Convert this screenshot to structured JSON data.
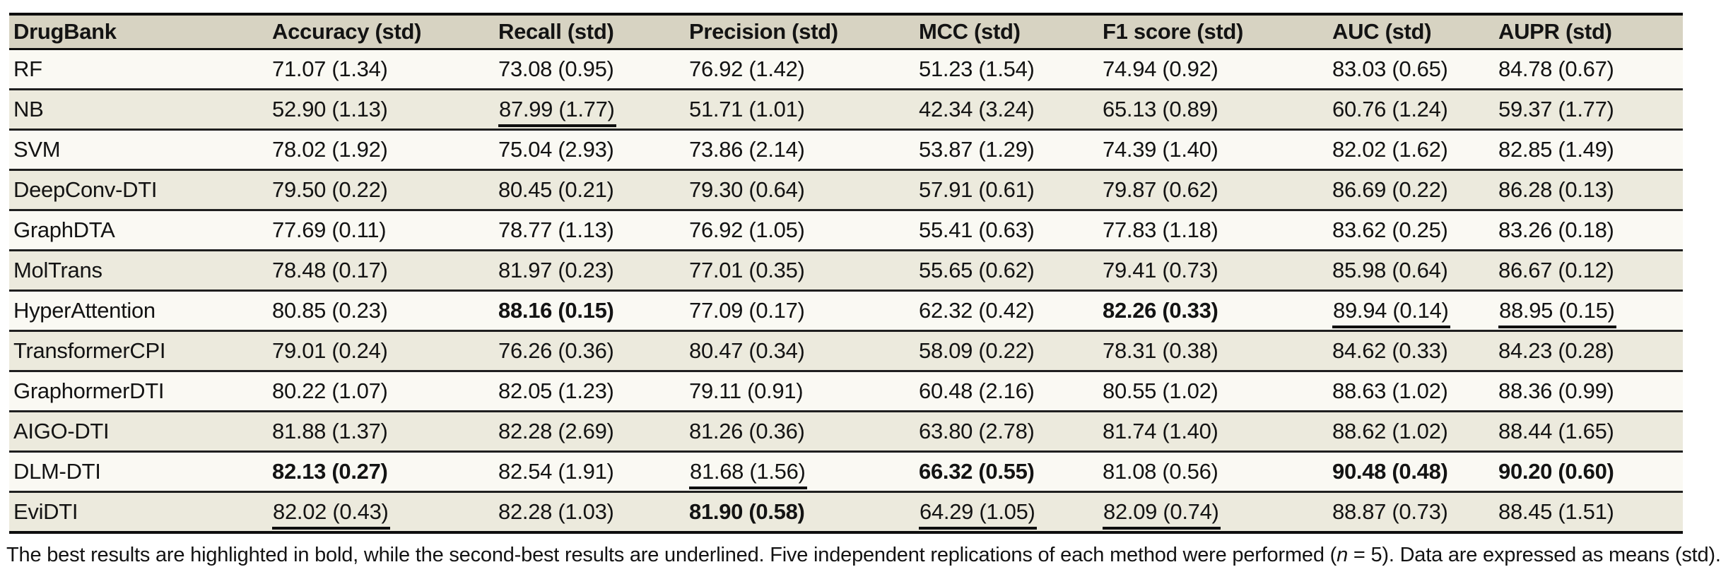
{
  "colors": {
    "header_bg": "#d7d3c2",
    "row_cream": "#faf9f3",
    "row_beige": "#eceadd",
    "border_strong": "#0e0e0e",
    "border_row": "#1f1f1f",
    "text": "#131313",
    "page_bg": "#ffffff"
  },
  "table": {
    "columns": [
      {
        "label": "DrugBank"
      },
      {
        "label": "Accuracy (std)"
      },
      {
        "label": "Recall (std)"
      },
      {
        "label": "Precision (std)"
      },
      {
        "label": "MCC (std)"
      },
      {
        "label": "F1 score (std)"
      },
      {
        "label": "AUC (std)"
      },
      {
        "label": "AUPR (std)"
      }
    ],
    "rows": [
      {
        "model": "RF",
        "cells": [
          {
            "text": "71.07 (1.34)",
            "style": "plain"
          },
          {
            "text": "73.08 (0.95)",
            "style": "plain"
          },
          {
            "text": "76.92 (1.42)",
            "style": "plain"
          },
          {
            "text": "51.23 (1.54)",
            "style": "plain"
          },
          {
            "text": "74.94 (0.92)",
            "style": "plain"
          },
          {
            "text": "83.03 (0.65)",
            "style": "plain"
          },
          {
            "text": "84.78 (0.67)",
            "style": "plain"
          }
        ]
      },
      {
        "model": "NB",
        "cells": [
          {
            "text": "52.90 (1.13)",
            "style": "plain"
          },
          {
            "text": "87.99 (1.77)",
            "style": "underline"
          },
          {
            "text": "51.71 (1.01)",
            "style": "plain"
          },
          {
            "text": "42.34 (3.24)",
            "style": "plain"
          },
          {
            "text": "65.13 (0.89)",
            "style": "plain"
          },
          {
            "text": "60.76 (1.24)",
            "style": "plain"
          },
          {
            "text": "59.37 (1.77)",
            "style": "plain"
          }
        ]
      },
      {
        "model": "SVM",
        "cells": [
          {
            "text": "78.02 (1.92)",
            "style": "plain"
          },
          {
            "text": "75.04 (2.93)",
            "style": "plain"
          },
          {
            "text": "73.86 (2.14)",
            "style": "plain"
          },
          {
            "text": "53.87 (1.29)",
            "style": "plain"
          },
          {
            "text": "74.39 (1.40)",
            "style": "plain"
          },
          {
            "text": "82.02 (1.62)",
            "style": "plain"
          },
          {
            "text": "82.85 (1.49)",
            "style": "plain"
          }
        ]
      },
      {
        "model": "DeepConv-DTI",
        "cells": [
          {
            "text": "79.50 (0.22)",
            "style": "plain"
          },
          {
            "text": "80.45 (0.21)",
            "style": "plain"
          },
          {
            "text": "79.30 (0.64)",
            "style": "plain"
          },
          {
            "text": "57.91 (0.61)",
            "style": "plain"
          },
          {
            "text": "79.87 (0.62)",
            "style": "plain"
          },
          {
            "text": "86.69 (0.22)",
            "style": "plain"
          },
          {
            "text": "86.28 (0.13)",
            "style": "plain"
          }
        ]
      },
      {
        "model": "GraphDTA",
        "cells": [
          {
            "text": "77.69 (0.11)",
            "style": "plain"
          },
          {
            "text": "78.77 (1.13)",
            "style": "plain"
          },
          {
            "text": "76.92 (1.05)",
            "style": "plain"
          },
          {
            "text": "55.41 (0.63)",
            "style": "plain"
          },
          {
            "text": "77.83 (1.18)",
            "style": "plain"
          },
          {
            "text": "83.62 (0.25)",
            "style": "plain"
          },
          {
            "text": "83.26 (0.18)",
            "style": "plain"
          }
        ]
      },
      {
        "model": "MolTrans",
        "cells": [
          {
            "text": "78.48 (0.17)",
            "style": "plain"
          },
          {
            "text": "81.97 (0.23)",
            "style": "plain"
          },
          {
            "text": "77.01 (0.35)",
            "style": "plain"
          },
          {
            "text": "55.65 (0.62)",
            "style": "plain"
          },
          {
            "text": "79.41 (0.73)",
            "style": "plain"
          },
          {
            "text": "85.98 (0.64)",
            "style": "plain"
          },
          {
            "text": "86.67 (0.12)",
            "style": "plain"
          }
        ]
      },
      {
        "model": "HyperAttention",
        "cells": [
          {
            "text": "80.85 (0.23)",
            "style": "plain"
          },
          {
            "text": "88.16 (0.15)",
            "style": "bold"
          },
          {
            "text": "77.09 (0.17)",
            "style": "plain"
          },
          {
            "text": "62.32 (0.42)",
            "style": "plain"
          },
          {
            "text": "82.26 (0.33)",
            "style": "bold"
          },
          {
            "text": "89.94 (0.14)",
            "style": "underline"
          },
          {
            "text": "88.95 (0.15)",
            "style": "underline"
          }
        ]
      },
      {
        "model": "TransformerCPI",
        "cells": [
          {
            "text": "79.01 (0.24)",
            "style": "plain"
          },
          {
            "text": "76.26 (0.36)",
            "style": "plain"
          },
          {
            "text": "80.47 (0.34)",
            "style": "plain"
          },
          {
            "text": "58.09 (0.22)",
            "style": "plain"
          },
          {
            "text": "78.31 (0.38)",
            "style": "plain"
          },
          {
            "text": "84.62 (0.33)",
            "style": "plain"
          },
          {
            "text": "84.23 (0.28)",
            "style": "plain"
          }
        ]
      },
      {
        "model": "GraphormerDTI",
        "cells": [
          {
            "text": "80.22 (1.07)",
            "style": "plain"
          },
          {
            "text": "82.05 (1.23)",
            "style": "plain"
          },
          {
            "text": "79.11 (0.91)",
            "style": "plain"
          },
          {
            "text": "60.48 (2.16)",
            "style": "plain"
          },
          {
            "text": "80.55 (1.02)",
            "style": "plain"
          },
          {
            "text": "88.63 (1.02)",
            "style": "plain"
          },
          {
            "text": "88.36 (0.99)",
            "style": "plain"
          }
        ]
      },
      {
        "model": "AIGO-DTI",
        "cells": [
          {
            "text": "81.88 (1.37)",
            "style": "plain"
          },
          {
            "text": "82.28 (2.69)",
            "style": "plain"
          },
          {
            "text": "81.26 (0.36)",
            "style": "plain"
          },
          {
            "text": "63.80 (2.78)",
            "style": "plain"
          },
          {
            "text": "81.74 (1.40)",
            "style": "plain"
          },
          {
            "text": "88.62 (1.02)",
            "style": "plain"
          },
          {
            "text": "88.44 (1.65)",
            "style": "plain"
          }
        ]
      },
      {
        "model": "DLM-DTI",
        "cells": [
          {
            "text": "82.13 (0.27)",
            "style": "bold"
          },
          {
            "text": "82.54 (1.91)",
            "style": "plain"
          },
          {
            "text": "81.68 (1.56)",
            "style": "underline"
          },
          {
            "text": "66.32 (0.55)",
            "style": "bold"
          },
          {
            "text": "81.08 (0.56)",
            "style": "plain"
          },
          {
            "text": "90.48 (0.48)",
            "style": "bold"
          },
          {
            "text": "90.20 (0.60)",
            "style": "bold"
          }
        ]
      },
      {
        "model": "EviDTI",
        "cells": [
          {
            "text": "82.02 (0.43)",
            "style": "underline"
          },
          {
            "text": "82.28 (1.03)",
            "style": "plain"
          },
          {
            "text": "81.90 (0.58)",
            "style": "bold"
          },
          {
            "text": "64.29 (1.05)",
            "style": "underline"
          },
          {
            "text": "82.09 (0.74)",
            "style": "underline"
          },
          {
            "text": "88.87 (0.73)",
            "style": "plain"
          },
          {
            "text": "88.45 (1.51)",
            "style": "plain"
          }
        ]
      }
    ],
    "footnote": {
      "prefix": "The best results are highlighted in bold, while the second-best results are underlined. Five independent replications of each method were performed (",
      "italic_var": "n",
      "suffix": " = 5). Data are expressed as means (std)."
    },
    "legend": {
      "bold_means": "best result",
      "underline_means": "second-best result"
    }
  }
}
